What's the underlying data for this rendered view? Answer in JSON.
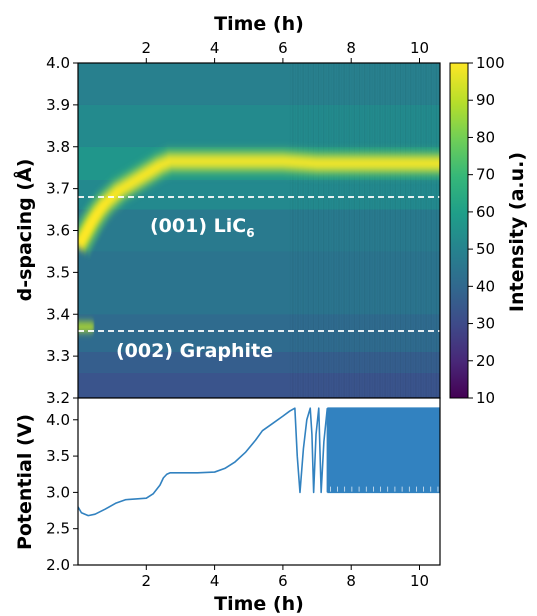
{
  "chart_data": [
    {
      "type": "heatmap",
      "title": "",
      "xlabel": "Time (h)",
      "ylabel": "d-spacing (Å)",
      "xlim": [
        0,
        10.6
      ],
      "ylim": [
        3.2,
        4.0
      ],
      "x_ticks": [
        2,
        4,
        6,
        8,
        10
      ],
      "x_tick_labels": [
        "2",
        "4",
        "6",
        "8",
        "10"
      ],
      "y_ticks": [
        3.2,
        3.3,
        3.4,
        3.5,
        3.6,
        3.7,
        3.8,
        3.9,
        4.0
      ],
      "y_tick_labels": [
        "3.2",
        "3.3",
        "3.4",
        "3.5",
        "3.6",
        "3.7",
        "3.8",
        "3.9",
        "4.0"
      ],
      "colorbar": {
        "label": "Intensity (a.u.)",
        "range": [
          10,
          100
        ],
        "ticks": [
          10,
          20,
          30,
          40,
          50,
          60,
          70,
          80,
          90,
          100
        ],
        "tick_labels": [
          "10",
          "20",
          "30",
          "40",
          "50",
          "60",
          "70",
          "80",
          "90",
          "100"
        ],
        "colormap": "viridis"
      },
      "reference_lines": [
        {
          "y": 3.68,
          "label_main": "(001) LiC",
          "label_sub": "6",
          "style": "dashed",
          "color": "#ffffff"
        },
        {
          "y": 3.36,
          "label_main": "(002) Graphite",
          "label_sub": "",
          "style": "dashed",
          "color": "#ffffff"
        }
      ],
      "peak_trace": {
        "x": [
          0.0,
          0.2,
          0.4,
          0.6,
          0.8,
          1.0,
          1.2,
          1.5,
          1.8,
          2.1,
          2.4,
          2.7,
          3.0,
          4.0,
          5.0,
          6.0,
          7.0,
          8.0,
          9.0,
          10.0,
          10.6
        ],
        "y": [
          3.56,
          3.59,
          3.62,
          3.645,
          3.665,
          3.68,
          3.695,
          3.71,
          3.725,
          3.74,
          3.755,
          3.765,
          3.765,
          3.765,
          3.765,
          3.765,
          3.76,
          3.76,
          3.76,
          3.76,
          3.76
        ]
      },
      "graphite_peak": {
        "x": [
          0.0,
          0.2,
          0.35
        ],
        "y": [
          3.37,
          3.37,
          3.37
        ]
      }
    },
    {
      "type": "line",
      "title": "",
      "xlabel": "Time (h)",
      "ylabel": "Potential (V)",
      "xlim": [
        0,
        10.6
      ],
      "ylim": [
        2.0,
        4.3
      ],
      "x_ticks": [
        2,
        4,
        6,
        8,
        10
      ],
      "x_tick_labels": [
        "2",
        "4",
        "6",
        "8",
        "10"
      ],
      "y_ticks": [
        2.0,
        2.5,
        3.0,
        3.5,
        4.0
      ],
      "y_tick_labels": [
        "2.0",
        "2.5",
        "3.0",
        "3.5",
        "4.0"
      ],
      "line_color": "#3282c0",
      "series": [
        {
          "x": [
            0.0,
            0.1,
            0.3,
            0.5,
            0.8,
            1.1,
            1.4,
            1.7,
            2.0,
            2.2,
            2.4,
            2.5,
            2.6,
            2.7,
            2.8,
            3.0,
            3.5,
            4.0,
            4.3,
            4.6,
            4.9,
            5.2,
            5.4,
            5.7,
            6.0,
            6.2,
            6.35,
            6.42,
            6.5,
            6.6,
            6.7,
            6.8,
            6.85,
            6.9,
            6.97,
            7.05,
            7.12,
            7.2,
            7.3
          ],
          "y": [
            2.8,
            2.72,
            2.68,
            2.7,
            2.77,
            2.85,
            2.9,
            2.91,
            2.92,
            2.98,
            3.1,
            3.2,
            3.25,
            3.27,
            3.27,
            3.27,
            3.27,
            3.28,
            3.33,
            3.42,
            3.55,
            3.72,
            3.85,
            3.95,
            4.05,
            4.12,
            4.16,
            3.5,
            3.0,
            3.6,
            4.0,
            4.16,
            3.8,
            3.0,
            3.8,
            4.16,
            3.0,
            3.7,
            4.16
          ]
        }
      ],
      "cycling": {
        "x_start": 7.3,
        "x_end": 10.6,
        "v_low": 3.0,
        "v_high": 4.16,
        "n_cycles": 110
      }
    }
  ]
}
